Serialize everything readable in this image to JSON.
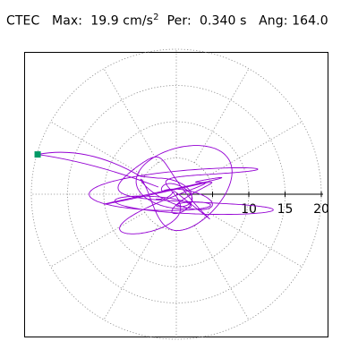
{
  "header": {
    "station": "CTEC",
    "max_label": "Max:",
    "max_value": "19.9 cm/s",
    "max_exp": "2",
    "per_label": "Per:",
    "per_value": "0.340 s",
    "ang_label": "Ang:",
    "ang_value": "164.0"
  },
  "chart_data": {
    "type": "polar-orbit",
    "title": "",
    "radial_range": [
      0,
      20
    ],
    "radial_ticks": [
      "10",
      "15",
      "20"
    ],
    "grid": true,
    "grid_style": "dotted",
    "angular_spokes_deg": [
      0,
      30,
      60,
      90,
      120,
      150,
      180,
      210,
      240,
      270,
      300,
      330
    ],
    "peak": {
      "amplitude": 19.9,
      "angle_deg": 164.0,
      "unit": "cm/s^2"
    },
    "series": [
      {
        "color": "#9400d3"
      }
    ],
    "marker_color": "#009966"
  }
}
